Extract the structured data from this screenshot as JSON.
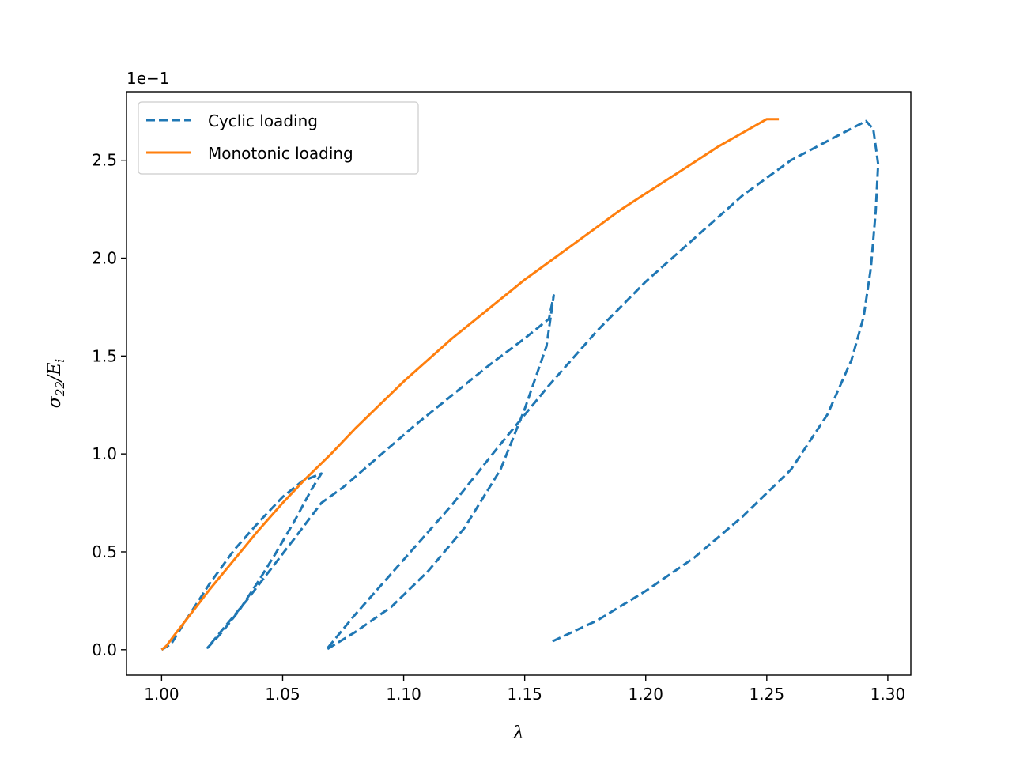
{
  "chart_data": {
    "type": "line",
    "xlabel": "λ",
    "ylabel": "σ22/Ei",
    "ylabel_main": "σ",
    "ylabel_sub1": "22",
    "ylabel_mid": "/E",
    "ylabel_sub2": "i",
    "y_offset_text": "1e−1",
    "xlim": [
      0.9855,
      1.3095
    ],
    "ylim": [
      -0.13,
      2.85
    ],
    "x_ticks": [
      1.0,
      1.05,
      1.1,
      1.15,
      1.2,
      1.25,
      1.3
    ],
    "x_tick_labels": [
      "1.00",
      "1.05",
      "1.10",
      "1.15",
      "1.20",
      "1.25",
      "1.30"
    ],
    "y_ticks": [
      0.0,
      0.5,
      1.0,
      1.5,
      2.0,
      2.5
    ],
    "y_tick_labels": [
      "0.0",
      "0.5",
      "1.0",
      "1.5",
      "2.0",
      "2.5"
    ],
    "grid": false,
    "legend_position": "upper left",
    "series": [
      {
        "name": "Cyclic loading",
        "color": "#1f77b4",
        "style": "dashed",
        "x": [
          1.0,
          1.004,
          1.01,
          1.02,
          1.03,
          1.04,
          1.05,
          1.058,
          1.066,
          1.062,
          1.055,
          1.047,
          1.04,
          1.032,
          1.025,
          1.019,
          1.025,
          1.035,
          1.045,
          1.055,
          1.066,
          1.075,
          1.09,
          1.105,
          1.12,
          1.135,
          1.15,
          1.16,
          1.162,
          1.159,
          1.15,
          1.14,
          1.125,
          1.11,
          1.095,
          1.08,
          1.068,
          1.08,
          1.1,
          1.12,
          1.14,
          1.16,
          1.18,
          1.2,
          1.22,
          1.24,
          1.26,
          1.28,
          1.291,
          1.294,
          1.296,
          1.295,
          1.293,
          1.29,
          1.285,
          1.275,
          1.26,
          1.24,
          1.22,
          1.2,
          1.18,
          1.161
        ],
        "y": [
          0.0,
          0.03,
          0.15,
          0.34,
          0.51,
          0.65,
          0.78,
          0.86,
          0.9,
          0.82,
          0.66,
          0.49,
          0.35,
          0.2,
          0.09,
          0.01,
          0.1,
          0.25,
          0.41,
          0.57,
          0.75,
          0.83,
          0.99,
          1.15,
          1.3,
          1.45,
          1.59,
          1.69,
          1.81,
          1.55,
          1.23,
          0.92,
          0.62,
          0.4,
          0.22,
          0.09,
          0.0,
          0.18,
          0.46,
          0.74,
          1.05,
          1.35,
          1.63,
          1.88,
          2.1,
          2.32,
          2.5,
          2.63,
          2.7,
          2.66,
          2.48,
          2.24,
          1.95,
          1.7,
          1.48,
          1.2,
          0.92,
          0.68,
          0.47,
          0.3,
          0.15,
          0.04
        ]
      },
      {
        "name": "Monotonic loading",
        "color": "#ff7f0e",
        "style": "solid",
        "x": [
          1.0,
          1.002,
          1.005,
          1.01,
          1.02,
          1.03,
          1.04,
          1.05,
          1.06,
          1.07,
          1.08,
          1.09,
          1.1,
          1.11,
          1.12,
          1.13,
          1.14,
          1.15,
          1.16,
          1.17,
          1.18,
          1.19,
          1.2,
          1.21,
          1.22,
          1.23,
          1.24,
          1.25,
          1.255
        ],
        "y": [
          0.0,
          0.02,
          0.07,
          0.15,
          0.31,
          0.46,
          0.61,
          0.75,
          0.88,
          1.0,
          1.13,
          1.25,
          1.37,
          1.48,
          1.59,
          1.69,
          1.79,
          1.89,
          1.98,
          2.07,
          2.16,
          2.25,
          2.33,
          2.41,
          2.49,
          2.57,
          2.64,
          2.71,
          2.71
        ]
      }
    ]
  }
}
